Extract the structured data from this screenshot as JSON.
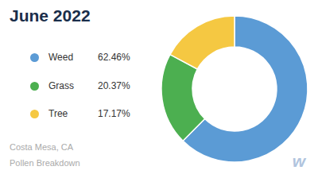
{
  "chart_data": {
    "type": "pie",
    "title": "June 2022",
    "subtitle": [
      "Costa Mesa, CA",
      "Pollen Breakdown"
    ],
    "categories": [
      "Weed",
      "Grass",
      "Tree"
    ],
    "values": [
      62.46,
      20.37,
      17.17
    ],
    "value_labels": [
      "62.46%",
      "20.37%",
      "17.17%"
    ],
    "colors": [
      "#5B9BD5",
      "#4CAF50",
      "#F5C842"
    ],
    "legend": "left",
    "annotations": [
      "w"
    ]
  }
}
